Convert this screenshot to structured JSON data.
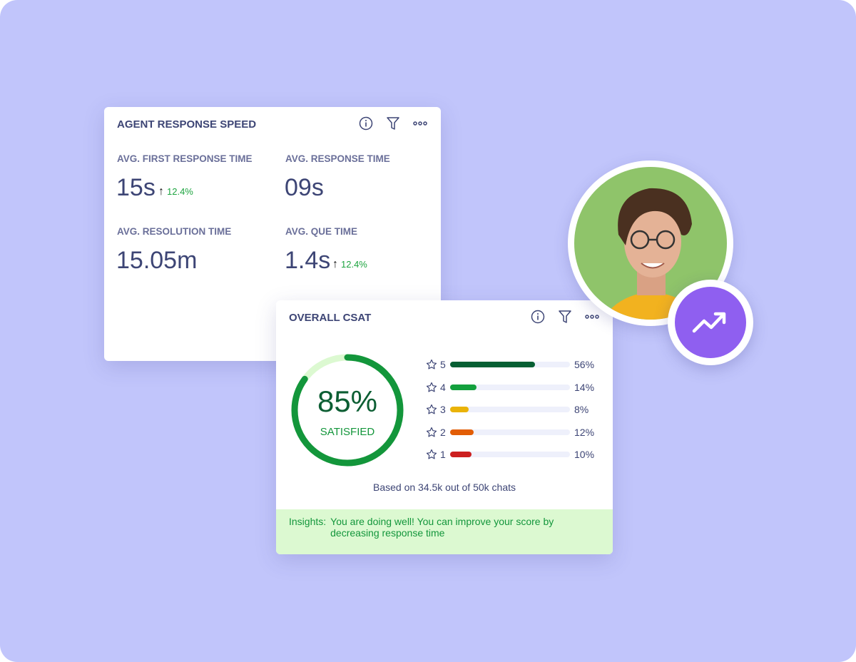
{
  "speed_card": {
    "title": "AGENT RESPONSE SPEED",
    "icons": [
      "info-icon",
      "filter-icon",
      "more-icon"
    ],
    "metrics": [
      {
        "label": "AVG. FIRST RESPONSE TIME",
        "value": "15s",
        "delta": "12.4%",
        "trend": "up"
      },
      {
        "label": "AVG. RESPONSE TIME",
        "value": "09s"
      },
      {
        "label": "AVG. RESOLUTION TIME",
        "value": "15.05m"
      },
      {
        "label": "AVG. QUE TIME",
        "value": "1.4s",
        "delta": "12.4%",
        "trend": "up"
      }
    ]
  },
  "csat_card": {
    "title": "OVERALL CSAT",
    "percent_label": "85%",
    "percent": 85,
    "status": "SATISFIED",
    "ratings": [
      {
        "stars": "5",
        "value": "56%",
        "pct": 56,
        "color": "#065f33"
      },
      {
        "stars": "4",
        "value": "14%",
        "pct": 14,
        "color": "#13a03d"
      },
      {
        "stars": "3",
        "value": "8%",
        "pct": 8,
        "color": "#eab308"
      },
      {
        "stars": "2",
        "value": "12%",
        "pct": 12,
        "color": "#e25d05"
      },
      {
        "stars": "1",
        "value": "10%",
        "pct": 10,
        "color": "#cc1f1f"
      }
    ],
    "based_on": "Based on 34.5k out of 50k chats",
    "insights_label": "Insights:",
    "insights_text": "You are doing well! You can improve your score by decreasing response time"
  },
  "colors": {
    "background": "#c1c5fb",
    "accent": "#8f5ff0",
    "ring": "#13963b",
    "ring_track": "#dcf9d1"
  },
  "badge_icon": "trending-up-icon"
}
